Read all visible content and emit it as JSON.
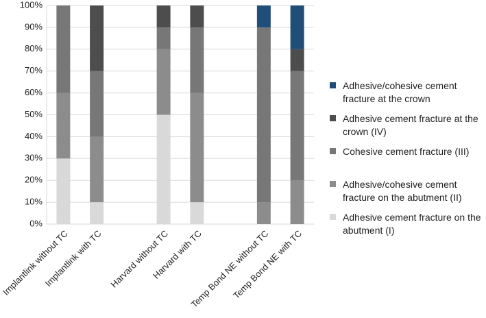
{
  "chart_data": {
    "type": "stacked-bar",
    "categories": [
      "Implantlink without TC",
      "Implantlink with TC",
      null,
      "Harvard without TC",
      "Harvard with TC",
      null,
      "Temp Bond NE without TC",
      "Temp Bond NE with TC"
    ],
    "series": [
      {
        "name": "Adhesive cement fracture on the abutment (I)",
        "color": "#d9d9d9",
        "values": [
          30,
          10,
          null,
          50,
          10,
          null,
          0,
          0
        ]
      },
      {
        "name": "Adhesive/cohesive cement fracture on the abutment (II)",
        "color": "#8c8c8c",
        "values": [
          30,
          30,
          null,
          30,
          50,
          null,
          10,
          20
        ]
      },
      {
        "name": "Cohesive cement fracture (III)",
        "color": "#777777",
        "values": [
          40,
          30,
          null,
          10,
          30,
          null,
          80,
          50
        ]
      },
      {
        "name": "Adhesive cement fracture at the crown (IV)",
        "color": "#4d4d4d",
        "values": [
          0,
          30,
          null,
          10,
          10,
          null,
          0,
          10
        ]
      },
      {
        "name": "Adhesive/cohesive cement fracture at the crown",
        "color": "#1f4e79",
        "values": [
          0,
          0,
          null,
          0,
          0,
          null,
          10,
          20
        ]
      }
    ],
    "ylim": [
      0,
      100
    ],
    "yticks": [
      {
        "value": 0,
        "label": "0%"
      },
      {
        "value": 10,
        "label": "10%"
      },
      {
        "value": 20,
        "label": "20%"
      },
      {
        "value": 30,
        "label": "30%"
      },
      {
        "value": 40,
        "label": "40%"
      },
      {
        "value": 50,
        "label": "50%"
      },
      {
        "value": 60,
        "label": "60%"
      },
      {
        "value": 70,
        "label": "70%"
      },
      {
        "value": 80,
        "label": "80%"
      },
      {
        "value": 90,
        "label": "90%"
      },
      {
        "value": 100,
        "label": "100%"
      }
    ],
    "grid": true,
    "legend": "right"
  }
}
